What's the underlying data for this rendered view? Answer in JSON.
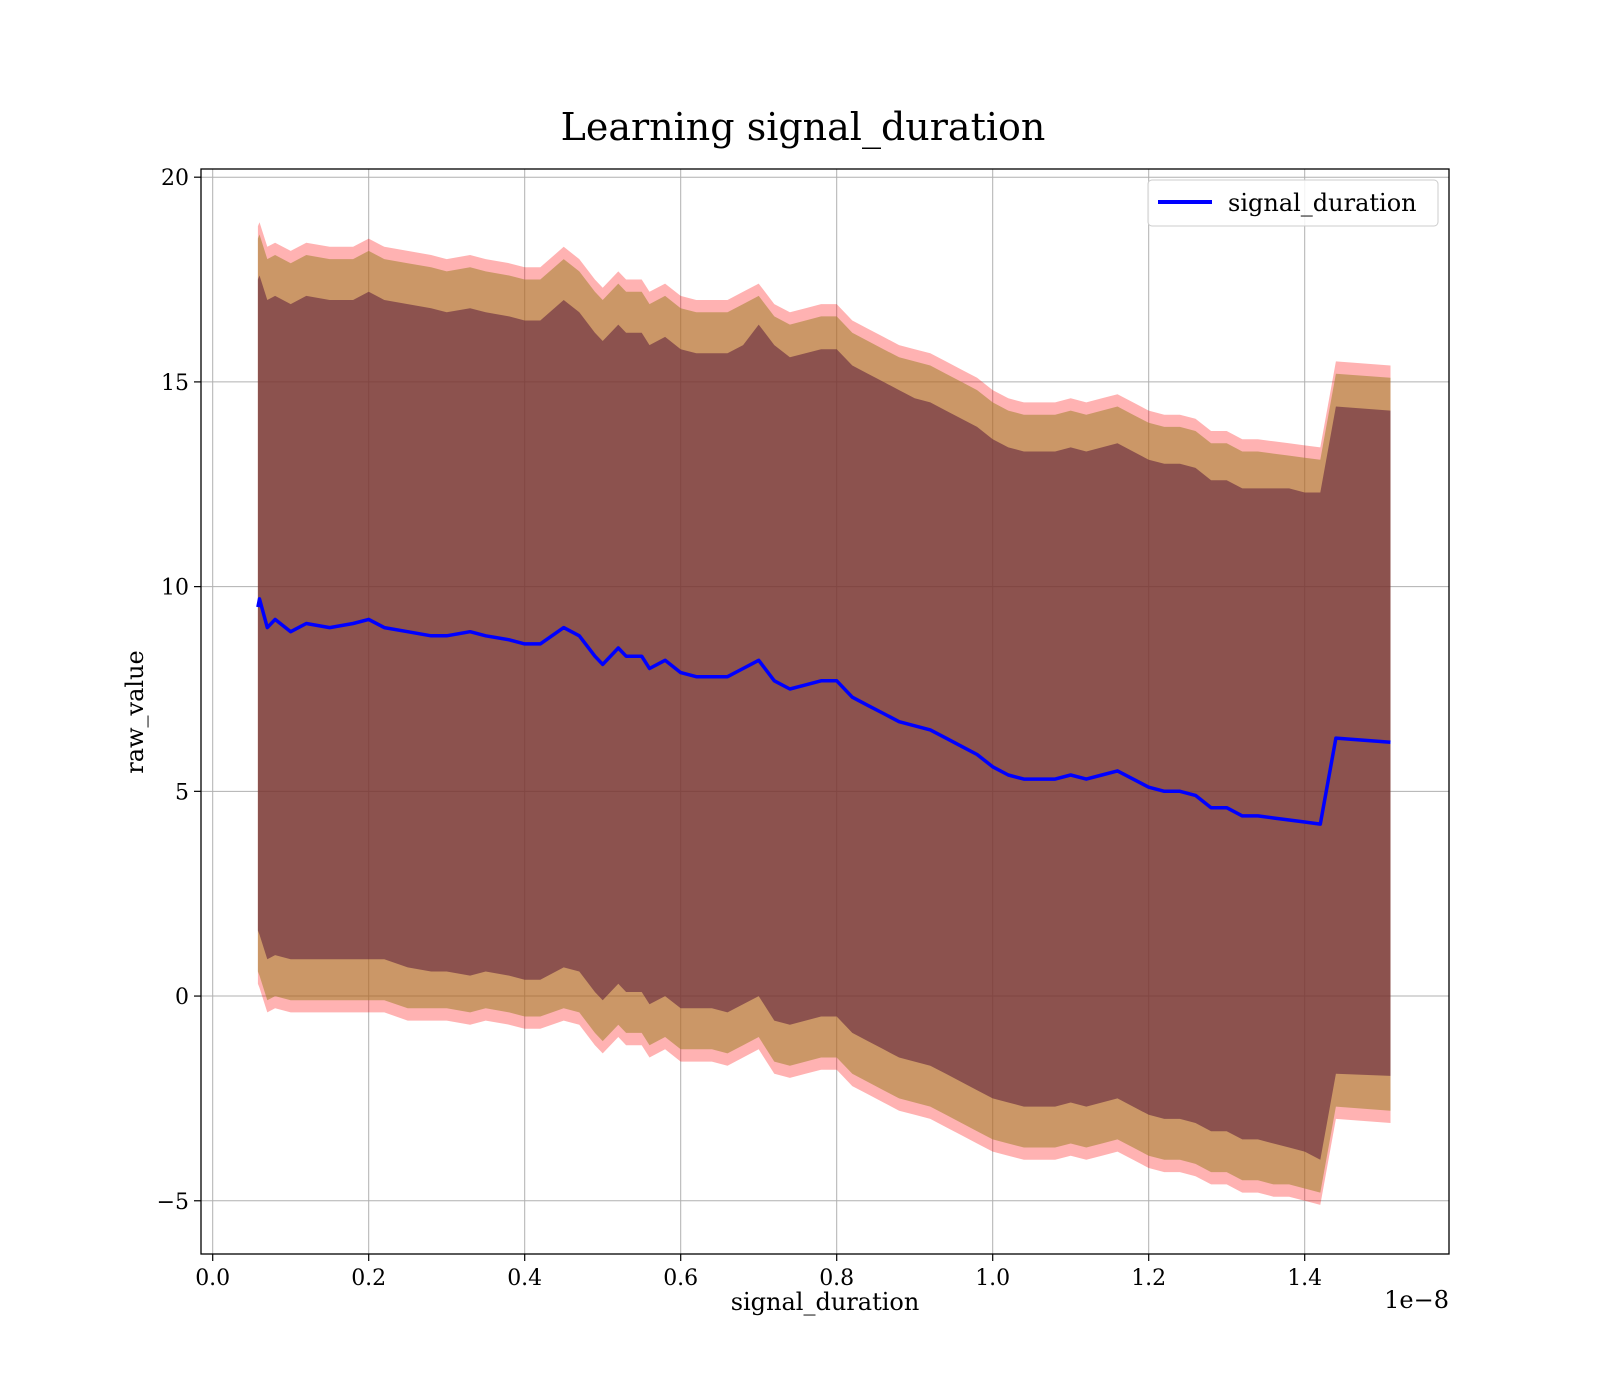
{
  "chart_data": {
    "type": "line",
    "title": "Learning signal_duration",
    "xlabel": "signal_duration",
    "ylabel": "raw_value",
    "x_offset_text": "1e−8",
    "xlim": [
      -0.015,
      1.585
    ],
    "ylim": [
      -6.3,
      20.2
    ],
    "x_ticks": [
      0.0,
      0.2,
      0.4,
      0.6,
      0.8,
      1.0,
      1.2,
      1.4
    ],
    "x_tick_labels": [
      "0.0",
      "0.2",
      "0.4",
      "0.6",
      "0.8",
      "1.0",
      "1.2",
      "1.4"
    ],
    "y_ticks": [
      -5,
      0,
      5,
      10,
      15,
      20
    ],
    "y_tick_labels": [
      "−5",
      "0",
      "5",
      "10",
      "15",
      "20"
    ],
    "grid": true,
    "legend_position": "top-right",
    "colors": {
      "line": "#0000ff",
      "band_outer": "#ff0000",
      "band_middle": "#a0822a",
      "band_inner": "#5a1a3a",
      "grid": "#b0b0b0"
    },
    "series": [
      {
        "name": "signal_duration",
        "x": [
          0.058,
          0.06,
          0.07,
          0.08,
          0.1,
          0.12,
          0.15,
          0.18,
          0.2,
          0.22,
          0.25,
          0.28,
          0.3,
          0.33,
          0.35,
          0.38,
          0.4,
          0.42,
          0.45,
          0.47,
          0.49,
          0.5,
          0.52,
          0.53,
          0.55,
          0.56,
          0.58,
          0.6,
          0.62,
          0.64,
          0.66,
          0.68,
          0.7,
          0.72,
          0.74,
          0.76,
          0.78,
          0.8,
          0.82,
          0.84,
          0.86,
          0.88,
          0.9,
          0.92,
          0.94,
          0.96,
          0.98,
          1.0,
          1.02,
          1.04,
          1.06,
          1.08,
          1.1,
          1.12,
          1.14,
          1.16,
          1.18,
          1.2,
          1.22,
          1.24,
          1.26,
          1.28,
          1.3,
          1.32,
          1.34,
          1.36,
          1.38,
          1.4,
          1.42,
          1.44,
          1.51
        ],
        "values": [
          9.5,
          9.7,
          9.0,
          9.2,
          8.9,
          9.1,
          9.0,
          9.1,
          9.2,
          9.0,
          8.9,
          8.8,
          8.8,
          8.9,
          8.8,
          8.7,
          8.6,
          8.6,
          9.0,
          8.8,
          8.3,
          8.1,
          8.5,
          8.3,
          8.3,
          8.0,
          8.2,
          7.9,
          7.8,
          7.8,
          7.8,
          8.0,
          8.2,
          7.7,
          7.5,
          7.6,
          7.7,
          7.7,
          7.3,
          7.1,
          6.9,
          6.7,
          6.6,
          6.5,
          6.3,
          6.1,
          5.9,
          5.6,
          5.4,
          5.3,
          5.3,
          5.3,
          5.4,
          5.3,
          5.4,
          5.5,
          5.3,
          5.1,
          5.0,
          5.0,
          4.9,
          4.6,
          4.6,
          4.4,
          4.4,
          4.35,
          4.3,
          4.25,
          4.2,
          6.3,
          6.2
        ]
      }
    ],
    "bands": [
      {
        "role": "outer",
        "low": [
          0.3,
          0.2,
          -0.4,
          -0.3,
          -0.4,
          -0.4,
          -0.4,
          -0.4,
          -0.4,
          -0.4,
          -0.6,
          -0.6,
          -0.6,
          -0.7,
          -0.6,
          -0.7,
          -0.8,
          -0.8,
          -0.6,
          -0.7,
          -1.2,
          -1.4,
          -1.0,
          -1.2,
          -1.2,
          -1.5,
          -1.3,
          -1.6,
          -1.6,
          -1.6,
          -1.7,
          -1.5,
          -1.3,
          -1.9,
          -2.0,
          -1.9,
          -1.8,
          -1.8,
          -2.2,
          -2.4,
          -2.6,
          -2.8,
          -2.9,
          -3.0,
          -3.2,
          -3.4,
          -3.6,
          -3.8,
          -3.9,
          -4.0,
          -4.0,
          -4.0,
          -3.9,
          -4.0,
          -3.9,
          -3.8,
          -4.0,
          -4.2,
          -4.3,
          -4.3,
          -4.4,
          -4.6,
          -4.6,
          -4.8,
          -4.8,
          -4.9,
          -4.9,
          -5.0,
          -5.1,
          -3.0,
          -3.1
        ],
        "high": [
          18.8,
          18.9,
          18.3,
          18.4,
          18.2,
          18.4,
          18.3,
          18.3,
          18.5,
          18.3,
          18.2,
          18.1,
          18.0,
          18.1,
          18.0,
          17.9,
          17.8,
          17.8,
          18.3,
          18.0,
          17.5,
          17.3,
          17.7,
          17.5,
          17.5,
          17.2,
          17.4,
          17.1,
          17.0,
          17.0,
          17.0,
          17.2,
          17.4,
          16.9,
          16.7,
          16.8,
          16.9,
          16.9,
          16.5,
          16.3,
          16.1,
          15.9,
          15.8,
          15.7,
          15.5,
          15.3,
          15.1,
          14.8,
          14.6,
          14.5,
          14.5,
          14.5,
          14.6,
          14.5,
          14.6,
          14.7,
          14.5,
          14.3,
          14.2,
          14.2,
          14.1,
          13.8,
          13.8,
          13.6,
          13.6,
          13.55,
          13.5,
          13.45,
          13.4,
          15.5,
          15.4
        ]
      },
      {
        "role": "middle",
        "low": [
          0.6,
          0.5,
          -0.1,
          0.0,
          -0.1,
          -0.1,
          -0.1,
          -0.1,
          -0.1,
          -0.1,
          -0.3,
          -0.3,
          -0.3,
          -0.4,
          -0.3,
          -0.4,
          -0.5,
          -0.5,
          -0.3,
          -0.4,
          -0.9,
          -1.1,
          -0.7,
          -0.9,
          -0.9,
          -1.2,
          -1.0,
          -1.3,
          -1.3,
          -1.3,
          -1.4,
          -1.2,
          -1.0,
          -1.6,
          -1.7,
          -1.6,
          -1.5,
          -1.5,
          -1.9,
          -2.1,
          -2.3,
          -2.5,
          -2.6,
          -2.7,
          -2.9,
          -3.1,
          -3.3,
          -3.5,
          -3.6,
          -3.7,
          -3.7,
          -3.7,
          -3.6,
          -3.7,
          -3.6,
          -3.5,
          -3.7,
          -3.9,
          -4.0,
          -4.0,
          -4.1,
          -4.3,
          -4.3,
          -4.5,
          -4.5,
          -4.6,
          -4.6,
          -4.7,
          -4.8,
          -2.7,
          -2.8
        ],
        "high": [
          18.5,
          18.6,
          18.0,
          18.1,
          17.9,
          18.1,
          18.0,
          18.0,
          18.2,
          18.0,
          17.9,
          17.8,
          17.7,
          17.8,
          17.7,
          17.6,
          17.5,
          17.5,
          18.0,
          17.7,
          17.2,
          17.0,
          17.4,
          17.2,
          17.2,
          16.9,
          17.1,
          16.8,
          16.7,
          16.7,
          16.7,
          16.9,
          17.1,
          16.6,
          16.4,
          16.5,
          16.6,
          16.6,
          16.2,
          16.0,
          15.8,
          15.6,
          15.5,
          15.4,
          15.2,
          15.0,
          14.8,
          14.5,
          14.3,
          14.2,
          14.2,
          14.2,
          14.3,
          14.2,
          14.3,
          14.4,
          14.2,
          14.0,
          13.9,
          13.9,
          13.8,
          13.5,
          13.5,
          13.3,
          13.3,
          13.25,
          13.2,
          13.15,
          13.1,
          15.2,
          15.1
        ]
      },
      {
        "role": "inner",
        "low": [
          1.6,
          1.5,
          0.9,
          1.0,
          0.9,
          0.9,
          0.9,
          0.9,
          0.9,
          0.9,
          0.7,
          0.6,
          0.6,
          0.5,
          0.6,
          0.5,
          0.4,
          0.4,
          0.7,
          0.6,
          0.1,
          -0.1,
          0.3,
          0.1,
          0.1,
          -0.2,
          0.0,
          -0.3,
          -0.3,
          -0.3,
          -0.4,
          -0.2,
          0.0,
          -0.6,
          -0.7,
          -0.6,
          -0.5,
          -0.5,
          -0.9,
          -1.1,
          -1.3,
          -1.5,
          -1.6,
          -1.7,
          -1.9,
          -2.1,
          -2.3,
          -2.5,
          -2.6,
          -2.7,
          -2.7,
          -2.7,
          -2.6,
          -2.7,
          -2.6,
          -2.5,
          -2.7,
          -2.9,
          -3.0,
          -3.0,
          -3.1,
          -3.3,
          -3.3,
          -3.5,
          -3.5,
          -3.6,
          -3.7,
          -3.8,
          -4.0,
          -1.9,
          -1.95
        ],
        "high": [
          17.5,
          17.6,
          17.0,
          17.1,
          16.9,
          17.1,
          17.0,
          17.0,
          17.2,
          17.0,
          16.9,
          16.8,
          16.7,
          16.8,
          16.7,
          16.6,
          16.5,
          16.5,
          17.0,
          16.7,
          16.2,
          16.0,
          16.4,
          16.2,
          16.2,
          15.9,
          16.1,
          15.8,
          15.7,
          15.7,
          15.7,
          15.9,
          16.4,
          15.9,
          15.6,
          15.7,
          15.8,
          15.8,
          15.4,
          15.2,
          15.0,
          14.8,
          14.6,
          14.5,
          14.3,
          14.1,
          13.9,
          13.6,
          13.4,
          13.3,
          13.3,
          13.3,
          13.4,
          13.3,
          13.4,
          13.5,
          13.3,
          13.1,
          13.0,
          13.0,
          12.9,
          12.6,
          12.6,
          12.4,
          12.4,
          12.4,
          12.4,
          12.3,
          12.3,
          14.4,
          14.3
        ]
      }
    ]
  }
}
